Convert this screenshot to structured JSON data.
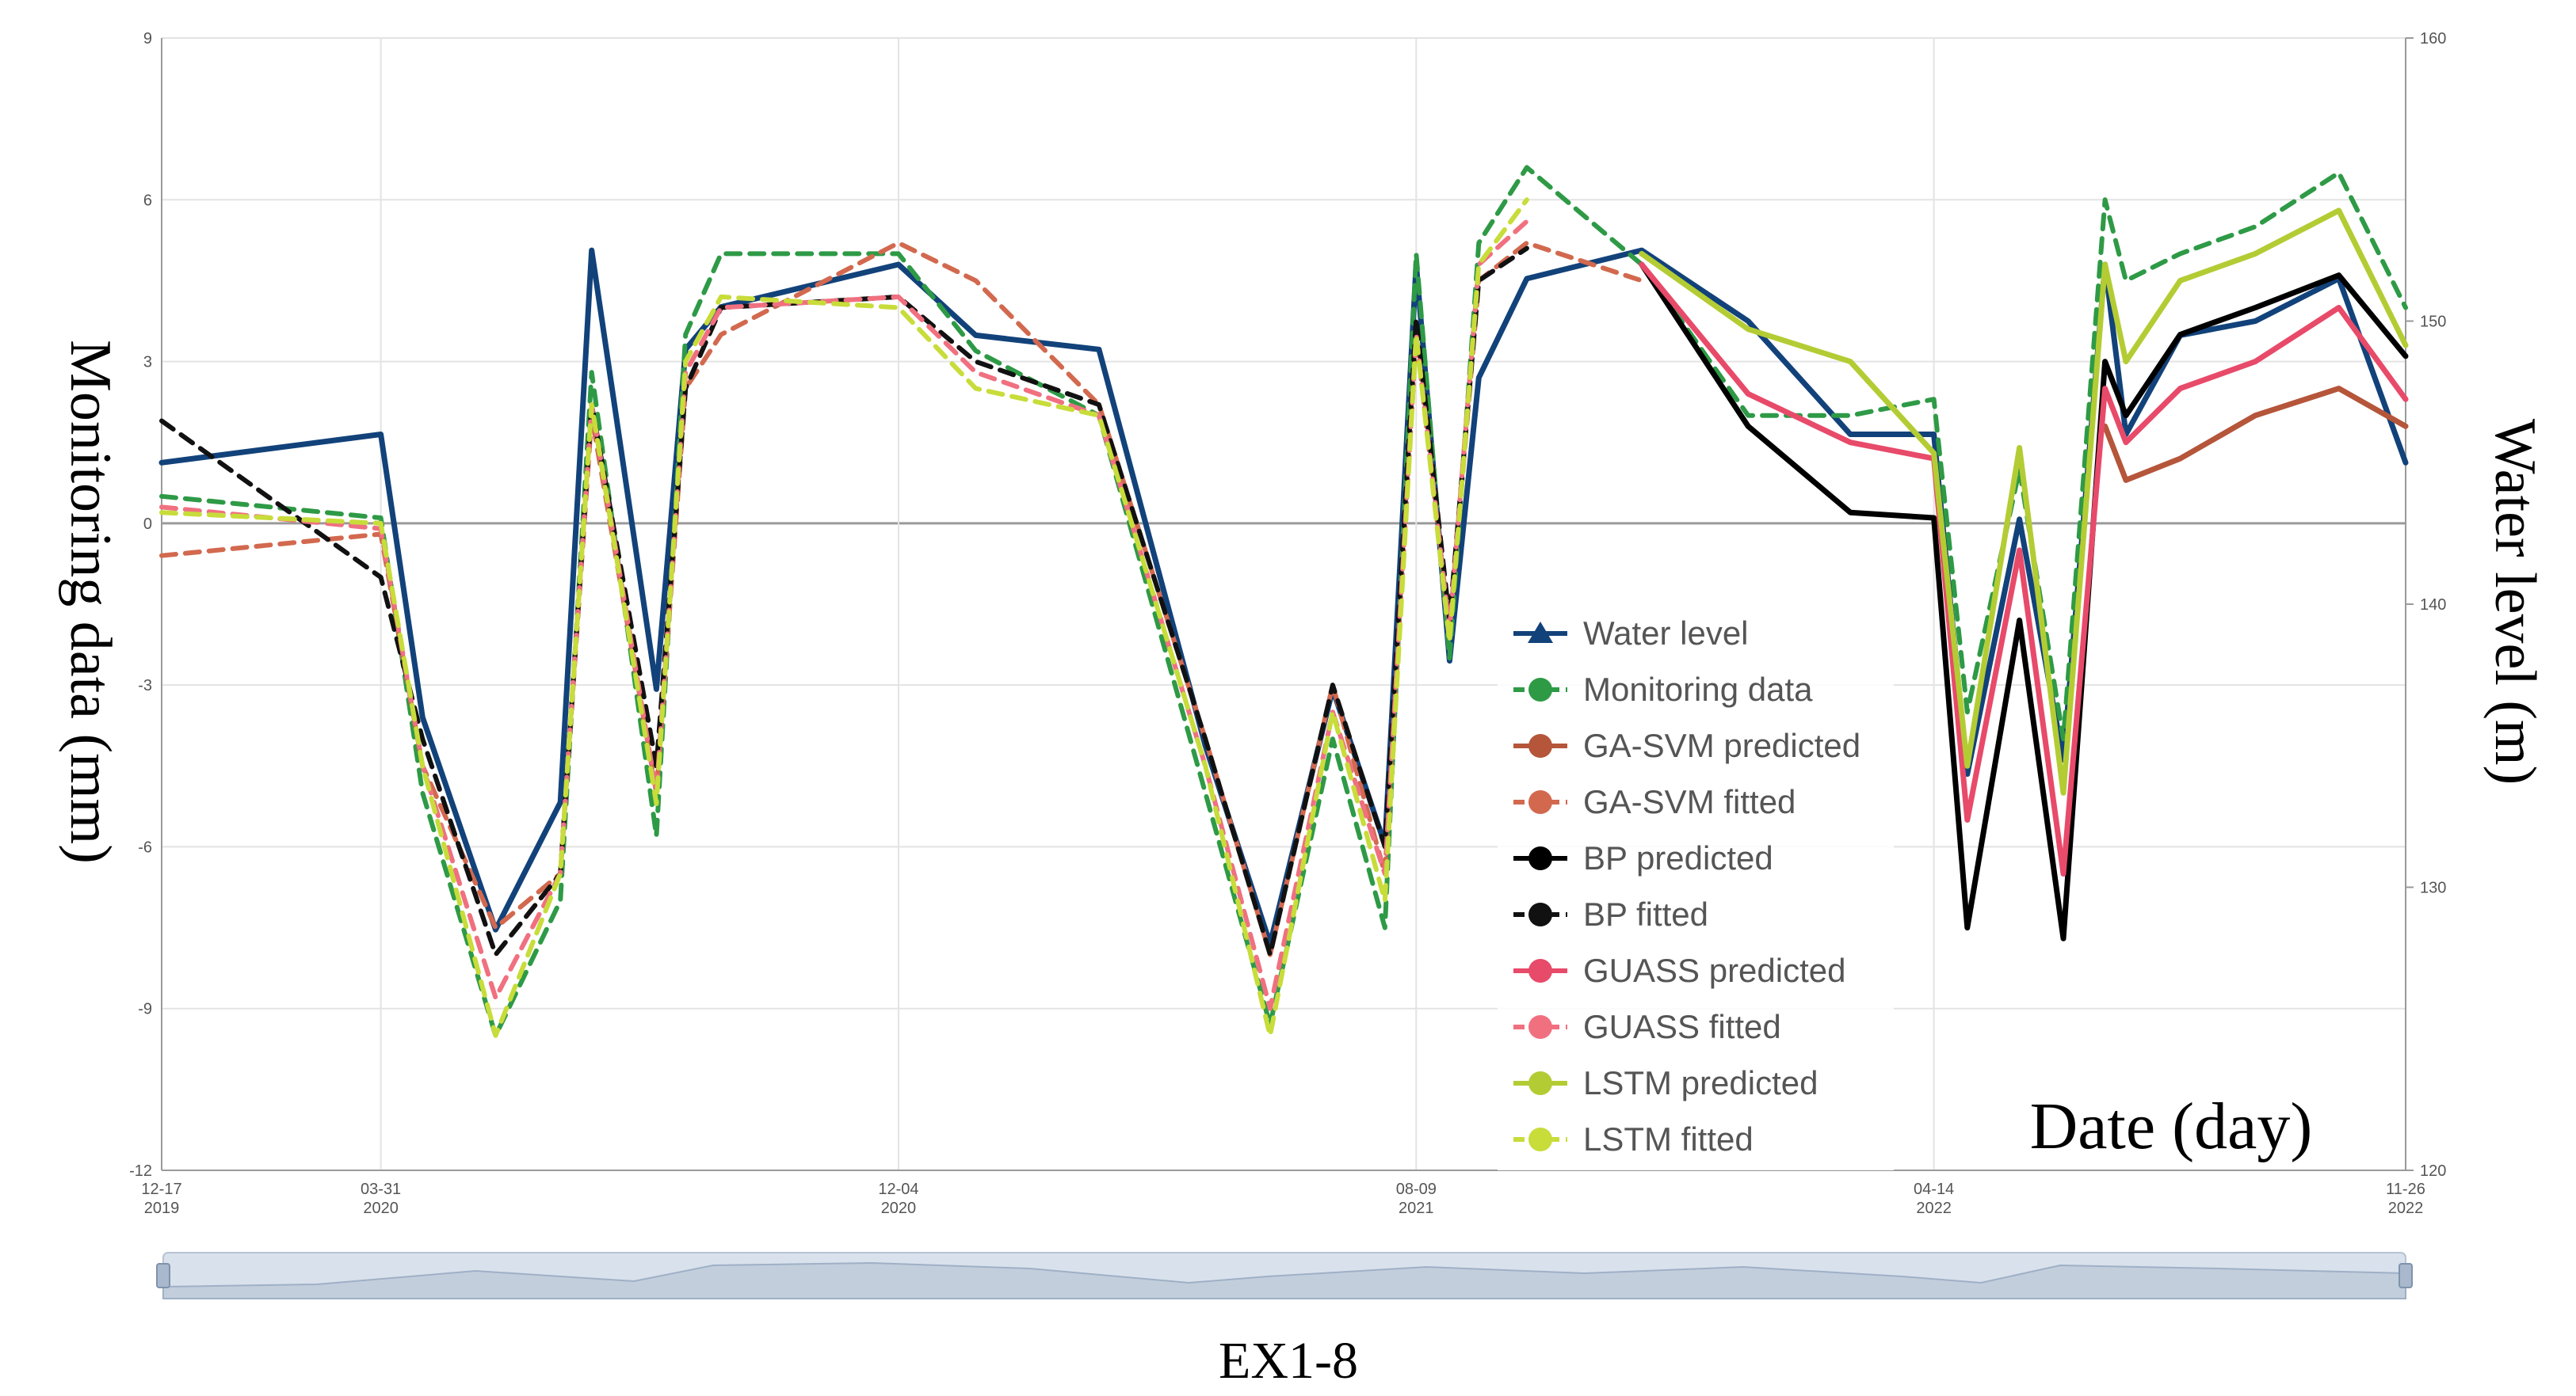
{
  "chart_data": {
    "type": "line",
    "title": "",
    "caption": "EX1-8",
    "xlabel": "Date (day)",
    "ylabel": "Monitoring data (mm)",
    "y2label": "Water level (m)",
    "ylim": [
      -12,
      9
    ],
    "y2lim": [
      120,
      160
    ],
    "yticks": [
      "9",
      "6",
      "3",
      "0",
      "-3",
      "-6",
      "-9",
      "-12"
    ],
    "y2ticks": [
      "160",
      "150",
      "140",
      "130",
      "120"
    ],
    "xlim": [
      "2019-12-17",
      "2022-11-26"
    ],
    "xticks": [
      {
        "date": "2019-12-17",
        "md": "12-17",
        "year": "2019"
      },
      {
        "date": "2020-03-31",
        "md": "03-31",
        "year": "2020"
      },
      {
        "date": "2020-12-04",
        "md": "12-04",
        "year": "2020"
      },
      {
        "date": "2021-08-09",
        "md": "08-09",
        "year": "2021"
      },
      {
        "date": "2022-04-14",
        "md": "04-14",
        "year": "2022"
      },
      {
        "date": "2022-11-26",
        "md": "11-26",
        "year": "2022"
      }
    ],
    "grid": true,
    "legend_position": "bottom-right-inside",
    "dates": [
      "2019-12-17",
      "2020-03-31",
      "2020-04-20",
      "2020-05-25",
      "2020-06-25",
      "2020-07-10",
      "2020-08-10",
      "2020-08-24",
      "2020-09-10",
      "2020-12-04",
      "2021-01-10",
      "2021-03-10",
      "2021-04-30",
      "2021-05-31",
      "2021-06-30",
      "2021-07-25",
      "2021-08-09",
      "2021-08-25",
      "2021-09-08",
      "2021-10-01",
      "2021-11-25",
      "2022-01-15",
      "2022-03-05",
      "2022-04-14",
      "2022-04-30",
      "2022-05-25",
      "2022-06-15",
      "2022-07-05",
      "2022-07-15",
      "2022-08-10",
      "2022-09-15",
      "2022-10-25",
      "2022-11-26"
    ],
    "series": [
      {
        "name": "Water level",
        "axis": "right",
        "color": "#12427a",
        "dash": "",
        "marker": "triangle",
        "values": [
          145.0,
          146.0,
          136.0,
          128.5,
          133.0,
          152.5,
          137.0,
          149.0,
          150.5,
          152.0,
          149.5,
          149.0,
          135.0,
          128.0,
          137.0,
          131.5,
          152.0,
          138.0,
          148.0,
          151.5,
          152.5,
          150.0,
          146.0,
          146.0,
          134.0,
          143.0,
          134.5,
          152.0,
          146.0,
          149.5,
          150.0,
          151.5,
          145.0
        ]
      },
      {
        "name": "Monitoring data",
        "axis": "left",
        "color": "#2e9a46",
        "dash": "18,12",
        "marker": "circle",
        "values": [
          0.5,
          0.1,
          -5.0,
          -9.5,
          -7.0,
          2.8,
          -5.8,
          3.5,
          5.0,
          5.0,
          3.2,
          2.0,
          -5.0,
          -9.3,
          -4.0,
          -7.5,
          5.0,
          -2.5,
          5.2,
          6.6,
          4.8,
          2.0,
          2.0,
          2.3,
          -3.5,
          1.0,
          -4.0,
          6.0,
          4.5,
          5.0,
          5.5,
          6.5,
          4.0
        ]
      },
      {
        "name": "GA-SVM predicted",
        "axis": "left",
        "color": "#b5553a",
        "dash": "",
        "marker": "circle",
        "values": [
          null,
          null,
          null,
          null,
          null,
          null,
          null,
          null,
          null,
          null,
          null,
          null,
          null,
          null,
          null,
          null,
          null,
          null,
          null,
          null,
          null,
          null,
          null,
          null,
          null,
          null,
          null,
          1.8,
          0.8,
          1.2,
          2.0,
          2.5,
          1.8
        ]
      },
      {
        "name": "GA-SVM fitted",
        "axis": "left",
        "color": "#d2694f",
        "dash": "18,12",
        "marker": "circle",
        "values": [
          -0.6,
          -0.2,
          -4.5,
          -7.5,
          -6.5,
          2.0,
          -5.0,
          2.5,
          3.5,
          5.2,
          4.5,
          2.2,
          -4.0,
          -8.0,
          -3.0,
          -6.5,
          3.5,
          -2.0,
          4.5,
          5.2,
          4.5,
          null,
          null,
          null,
          null,
          null,
          null,
          null,
          null,
          null,
          null,
          null,
          null
        ]
      },
      {
        "name": "BP predicted",
        "axis": "left",
        "color": "#000000",
        "dash": "",
        "marker": "circle",
        "values": [
          null,
          null,
          null,
          null,
          null,
          null,
          null,
          null,
          null,
          null,
          null,
          null,
          null,
          null,
          null,
          null,
          null,
          null,
          null,
          null,
          4.8,
          1.8,
          0.2,
          0.1,
          -7.5,
          -1.8,
          -7.7,
          3.0,
          2.0,
          3.5,
          4.0,
          4.6,
          3.1
        ]
      },
      {
        "name": "BP fitted",
        "axis": "left",
        "color": "#111111",
        "dash": "18,12",
        "marker": "circle",
        "values": [
          1.9,
          -1.0,
          -4.0,
          -8.0,
          -6.5,
          2.2,
          -4.5,
          2.5,
          4.0,
          4.2,
          3.0,
          2.2,
          -4.0,
          -8.0,
          -3.0,
          -6.0,
          3.8,
          -1.8,
          4.5,
          5.1,
          null,
          null,
          null,
          null,
          null,
          null,
          null,
          null,
          null,
          null,
          null,
          null,
          null
        ]
      },
      {
        "name": "GUASS predicted",
        "axis": "left",
        "color": "#e84a6a",
        "dash": "",
        "marker": "circle",
        "values": [
          null,
          null,
          null,
          null,
          null,
          null,
          null,
          null,
          null,
          null,
          null,
          null,
          null,
          null,
          null,
          null,
          null,
          null,
          null,
          null,
          4.8,
          2.4,
          1.5,
          1.2,
          -5.5,
          -0.5,
          -6.5,
          2.5,
          1.5,
          2.5,
          3.0,
          4.0,
          2.3
        ]
      },
      {
        "name": "GUASS fitted",
        "axis": "left",
        "color": "#f07080",
        "dash": "18,12",
        "marker": "circle",
        "values": [
          0.3,
          -0.1,
          -4.5,
          -8.8,
          -6.5,
          2.2,
          -5.0,
          2.8,
          4.0,
          4.2,
          2.8,
          2.0,
          -4.5,
          -9.0,
          -3.5,
          -6.5,
          3.5,
          -2.0,
          4.8,
          5.6,
          null,
          null,
          null,
          null,
          null,
          null,
          null,
          null,
          null,
          null,
          null,
          null,
          null
        ]
      },
      {
        "name": "LSTM predicted",
        "axis": "left",
        "color": "#b4cc34",
        "dash": "",
        "marker": "circle",
        "values": [
          null,
          null,
          null,
          null,
          null,
          null,
          null,
          null,
          null,
          null,
          null,
          null,
          null,
          null,
          null,
          null,
          null,
          null,
          null,
          null,
          5.0,
          3.6,
          3.0,
          1.3,
          -4.5,
          1.4,
          -5.0,
          4.8,
          3.0,
          4.5,
          5.0,
          5.8,
          3.3
        ]
      },
      {
        "name": "LSTM fitted",
        "axis": "left",
        "color": "#c8dc3a",
        "dash": "18,12",
        "marker": "circle",
        "values": [
          0.2,
          0.0,
          -4.5,
          -9.5,
          -6.5,
          2.2,
          -5.2,
          3.0,
          4.2,
          4.0,
          2.5,
          2.0,
          -4.5,
          -9.5,
          -3.5,
          -7.0,
          3.5,
          -2.2,
          4.8,
          6.0,
          null,
          null,
          null,
          null,
          null,
          null,
          null,
          null,
          null,
          null,
          null,
          null,
          null
        ]
      }
    ]
  }
}
